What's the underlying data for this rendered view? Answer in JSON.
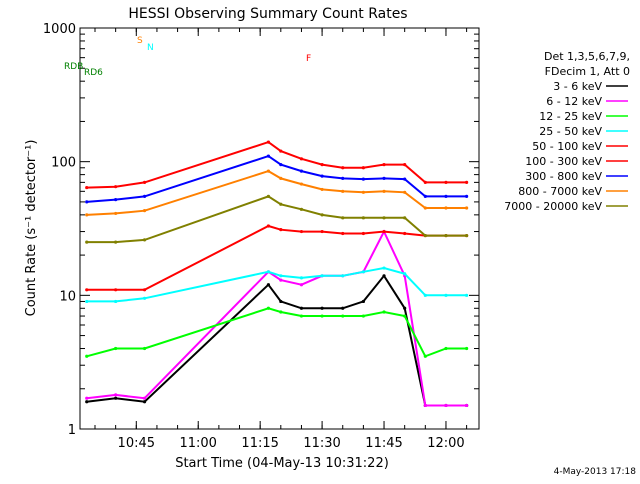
{
  "chart_data": {
    "type": "line",
    "title": "HESSI Observing Summary Count Rates",
    "xlabel": "Start Time (04-May-13 10:31:22)",
    "ylabel": "Count Rate (s⁻¹ detector⁻¹)",
    "yscale": "log",
    "ylim": [
      1,
      1000
    ],
    "xlim": [
      "10:31:22",
      "12:08"
    ],
    "x_ticks": [
      "10:45",
      "11:00",
      "11:15",
      "11:30",
      "11:45",
      "12:00"
    ],
    "y_ticks": [
      "1",
      "10",
      "100",
      "1000"
    ],
    "legend_position": "right",
    "legend_header": [
      "Det 1,3,5,6,7,9,",
      "FDecim 1, Att 0"
    ],
    "series": [
      {
        "name": "3 - 6 keV",
        "color": "#000000",
        "x": [
          "10:33",
          "10:40",
          "10:47",
          "11:17",
          "11:20",
          "11:25",
          "11:30",
          "11:35",
          "11:40",
          "11:45",
          "11:50",
          "11:55",
          "12:00",
          "12:05"
        ],
        "values": [
          1.6,
          1.7,
          1.6,
          12,
          9,
          8,
          8,
          8,
          9,
          14,
          8,
          1.5,
          1.5,
          1.5
        ]
      },
      {
        "name": "6 - 12 keV",
        "color": "#ff00ff",
        "x": [
          "10:33",
          "10:40",
          "10:47",
          "11:17",
          "11:20",
          "11:25",
          "11:30",
          "11:35",
          "11:40",
          "11:45",
          "11:50",
          "11:55",
          "12:00",
          "12:05"
        ],
        "values": [
          1.7,
          1.8,
          1.7,
          15,
          13,
          12,
          14,
          14,
          15,
          30,
          14,
          1.5,
          1.5,
          1.5
        ]
      },
      {
        "name": "12 - 25 keV",
        "color": "#00ff00",
        "x": [
          "10:33",
          "10:40",
          "10:47",
          "11:17",
          "11:20",
          "11:25",
          "11:30",
          "11:35",
          "11:40",
          "11:45",
          "11:50",
          "11:55",
          "12:00",
          "12:05"
        ],
        "values": [
          3.5,
          4,
          4,
          8,
          7.5,
          7,
          7,
          7,
          7,
          7.5,
          7,
          3.5,
          4,
          4
        ]
      },
      {
        "name": "25 - 50 keV",
        "color": "#00ffff",
        "x": [
          "10:33",
          "10:40",
          "10:47",
          "11:17",
          "11:20",
          "11:25",
          "11:30",
          "11:35",
          "11:40",
          "11:45",
          "11:50",
          "11:55",
          "12:00",
          "12:05"
        ],
        "values": [
          9,
          9,
          9.5,
          15,
          14,
          13.5,
          14,
          14,
          15,
          16,
          14.5,
          10,
          10,
          10
        ]
      },
      {
        "name": "50 - 100 keV",
        "color": "#ff0000",
        "x": [
          "10:33",
          "10:40",
          "10:47",
          "11:17",
          "11:20",
          "11:25",
          "11:30",
          "11:35",
          "11:40",
          "11:45",
          "11:50",
          "11:55",
          "12:00",
          "12:05"
        ],
        "values": [
          11,
          11,
          11,
          33,
          31,
          30,
          30,
          29,
          29,
          30,
          29,
          28,
          28,
          28
        ]
      },
      {
        "name": "100 - 300 keV",
        "color": "#ff0000",
        "x": [
          "10:33",
          "10:40",
          "10:47",
          "11:17",
          "11:20",
          "11:25",
          "11:30",
          "11:35",
          "11:40",
          "11:45",
          "11:50",
          "11:55",
          "12:00",
          "12:05"
        ],
        "values": [
          64,
          65,
          70,
          140,
          120,
          105,
          95,
          90,
          90,
          95,
          95,
          70,
          70,
          70
        ]
      },
      {
        "name": "300 - 800 keV",
        "color": "#0000ff",
        "x": [
          "10:33",
          "10:40",
          "10:47",
          "11:17",
          "11:20",
          "11:25",
          "11:30",
          "11:35",
          "11:40",
          "11:45",
          "11:50",
          "11:55",
          "12:00",
          "12:05"
        ],
        "values": [
          50,
          52,
          55,
          110,
          95,
          85,
          78,
          75,
          74,
          75,
          74,
          55,
          55,
          55
        ]
      },
      {
        "name": "800 - 7000 keV",
        "color": "#ff8000",
        "x": [
          "10:33",
          "10:40",
          "10:47",
          "11:17",
          "11:20",
          "11:25",
          "11:30",
          "11:35",
          "11:40",
          "11:45",
          "11:50",
          "11:55",
          "12:00",
          "12:05"
        ],
        "values": [
          40,
          41,
          43,
          85,
          75,
          68,
          62,
          60,
          59,
          60,
          59,
          45,
          45,
          45
        ]
      },
      {
        "name": "7000 - 20000 keV",
        "color": "#808000",
        "x": [
          "10:33",
          "10:40",
          "10:47",
          "11:17",
          "11:20",
          "11:25",
          "11:30",
          "11:35",
          "11:40",
          "11:45",
          "11:50",
          "11:55",
          "12:00",
          "12:05"
        ],
        "values": [
          25,
          25,
          26,
          55,
          48,
          44,
          40,
          38,
          38,
          38,
          38,
          28,
          28,
          28
        ]
      }
    ],
    "annotations": [
      {
        "text": "RD6",
        "color": "#008000"
      },
      {
        "text": "RDB",
        "color": "#008000"
      },
      {
        "text": "S",
        "color": "#ff8000"
      },
      {
        "text": "N",
        "color": "#00ffff"
      },
      {
        "text": "F",
        "color": "#ff0000"
      }
    ],
    "footer": "4-May-2013 17:18"
  }
}
